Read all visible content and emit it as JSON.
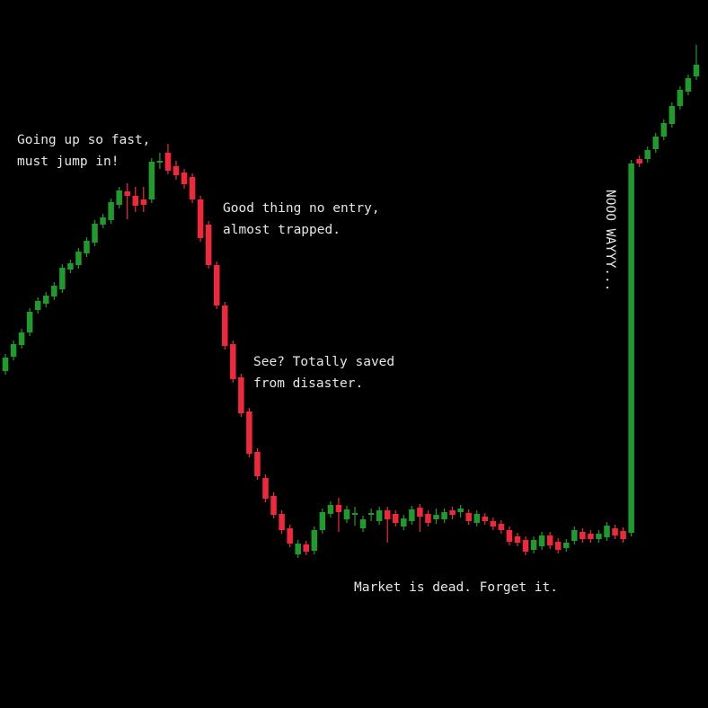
{
  "chart_data": {
    "type": "candlestick",
    "up_color": "#1f9a2c",
    "down_color": "#f0283c",
    "ylim": [
      0,
      788
    ],
    "open": [
      375,
      391,
      404,
      418,
      443,
      450,
      458,
      466,
      488,
      493,
      506,
      518,
      538,
      543,
      560,
      575,
      570,
      566,
      566,
      607,
      618,
      603,
      596,
      591,
      566,
      538,
      493,
      448,
      405,
      368,
      330,
      285,
      256,
      236,
      216,
      200,
      171,
      182,
      175,
      198,
      216,
      226,
      210,
      215,
      200,
      215,
      208,
      220,
      216,
      202,
      208,
      223,
      216,
      210,
      210,
      220,
      218,
      217,
      206,
      213,
      208,
      205,
      198,
      191,
      187,
      176,
      180,
      192,
      185,
      178,
      186,
      196,
      194,
      188,
      190,
      200,
      197,
      195,
      611,
      611,
      622,
      636,
      650,
      670,
      686,
      703
    ],
    "high": [
      394,
      409,
      422,
      445,
      457,
      463,
      474,
      494,
      499,
      512,
      524,
      543,
      550,
      567,
      580,
      584,
      580,
      580,
      612,
      618,
      628,
      609,
      600,
      595,
      570,
      542,
      497,
      452,
      409,
      372,
      334,
      289,
      260,
      240,
      220,
      204,
      187,
      186,
      202,
      222,
      230,
      234,
      225,
      224,
      214,
      222,
      224,
      224,
      220,
      215,
      225,
      227,
      220,
      222,
      222,
      224,
      226,
      221,
      220,
      217,
      212,
      209,
      202,
      195,
      191,
      191,
      196,
      196,
      189,
      188,
      202,
      200,
      198,
      198,
      207,
      204,
      201,
      610,
      615,
      625,
      640,
      655,
      674,
      692,
      705,
      738
    ],
    "low": [
      371,
      387,
      400,
      414,
      439,
      446,
      454,
      462,
      484,
      489,
      502,
      514,
      534,
      539,
      556,
      544,
      552,
      552,
      562,
      600,
      594,
      588,
      578,
      562,
      519,
      489,
      444,
      399,
      362,
      324,
      279,
      254,
      229,
      211,
      194,
      179,
      167,
      170,
      171,
      194,
      212,
      196,
      206,
      203,
      196,
      208,
      204,
      184,
      202,
      198,
      204,
      196,
      202,
      205,
      206,
      210,
      212,
      204,
      202,
      204,
      198,
      194,
      181,
      180,
      170,
      172,
      176,
      177,
      172,
      174,
      182,
      184,
      184,
      184,
      186,
      188,
      184,
      191,
      602,
      607,
      618,
      632,
      646,
      666,
      682,
      699
    ],
    "close": [
      390,
      405,
      418,
      441,
      453,
      459,
      470,
      490,
      495,
      508,
      520,
      539,
      546,
      563,
      576,
      570,
      559,
      560,
      608,
      609,
      598,
      593,
      583,
      566,
      523,
      493,
      448,
      403,
      366,
      328,
      283,
      258,
      233,
      215,
      198,
      183,
      183,
      174,
      198,
      218,
      226,
      218,
      221,
      217,
      210,
      217,
      220,
      210,
      206,
      211,
      221,
      213,
      206,
      215,
      218,
      215,
      222,
      208,
      216,
      208,
      202,
      198,
      185,
      184,
      174,
      187,
      192,
      181,
      176,
      184,
      198,
      188,
      188,
      194,
      203,
      192,
      188,
      606,
      606,
      621,
      636,
      651,
      670,
      688,
      701,
      716
    ],
    "annotations": [
      {
        "lines": [
          "Going up so fast,",
          "must jump in!"
        ]
      },
      {
        "lines": [
          "Good thing no entry,",
          "almost trapped."
        ]
      },
      {
        "lines": [
          "See? Totally saved",
          "from disaster."
        ]
      },
      {
        "lines": [
          "Market is dead. Forget it."
        ]
      },
      {
        "lines": [
          "NOOO WAYYY..."
        ]
      }
    ]
  }
}
